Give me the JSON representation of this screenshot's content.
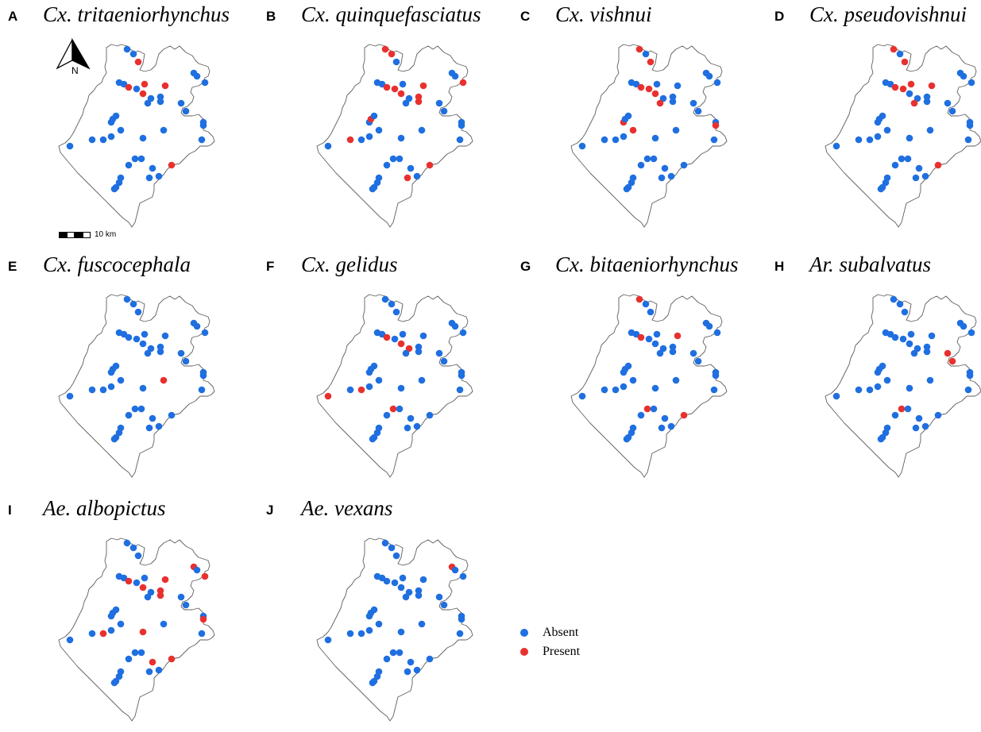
{
  "colors": {
    "absent": "#1f6fe0",
    "present": "#e8312f",
    "boundary": "#5f5f5f"
  },
  "north_label": "N",
  "scale_label": "10 km",
  "legend": [
    {
      "key": "absent",
      "label": "Absent"
    },
    {
      "key": "present",
      "label": "Present"
    }
  ],
  "panels": [
    {
      "letter": "A",
      "title": "Cx. tritaeniorhynchus",
      "present": [
        2,
        5,
        7,
        8,
        9,
        36
      ]
    },
    {
      "letter": "B",
      "title": "Cx. quinquefasciatus",
      "present": [
        0,
        1,
        5,
        6,
        8,
        9,
        12,
        13,
        15,
        22,
        27,
        36,
        37
      ]
    },
    {
      "letter": "C",
      "title": "Cx. vishnui",
      "present": [
        0,
        2,
        5,
        6,
        9,
        11,
        20,
        21,
        30
      ]
    },
    {
      "letter": "D",
      "title": "Cx. pseudovishnui",
      "present": [
        0,
        2,
        5,
        6,
        7,
        8,
        11,
        36
      ]
    },
    {
      "letter": "E",
      "title": "Cx. fuscocephala",
      "present": [
        25
      ]
    },
    {
      "letter": "F",
      "title": "Cx. gelidus",
      "present": [
        5,
        9,
        10,
        28,
        31,
        32
      ]
    },
    {
      "letter": "G",
      "title": "Cx. bitaeniorhynchus",
      "present": [
        0,
        5,
        8,
        32,
        36
      ]
    },
    {
      "letter": "H",
      "title": "Ar. subalvatus",
      "present": [
        17,
        18,
        32
      ]
    },
    {
      "letter": "I",
      "title": "Ae. albopictus",
      "present": [
        5,
        8,
        9,
        12,
        13,
        14,
        15,
        20,
        24,
        28,
        35,
        36
      ]
    },
    {
      "letter": "J",
      "title": "Ae. vexans",
      "present": [
        14
      ]
    }
  ]
}
